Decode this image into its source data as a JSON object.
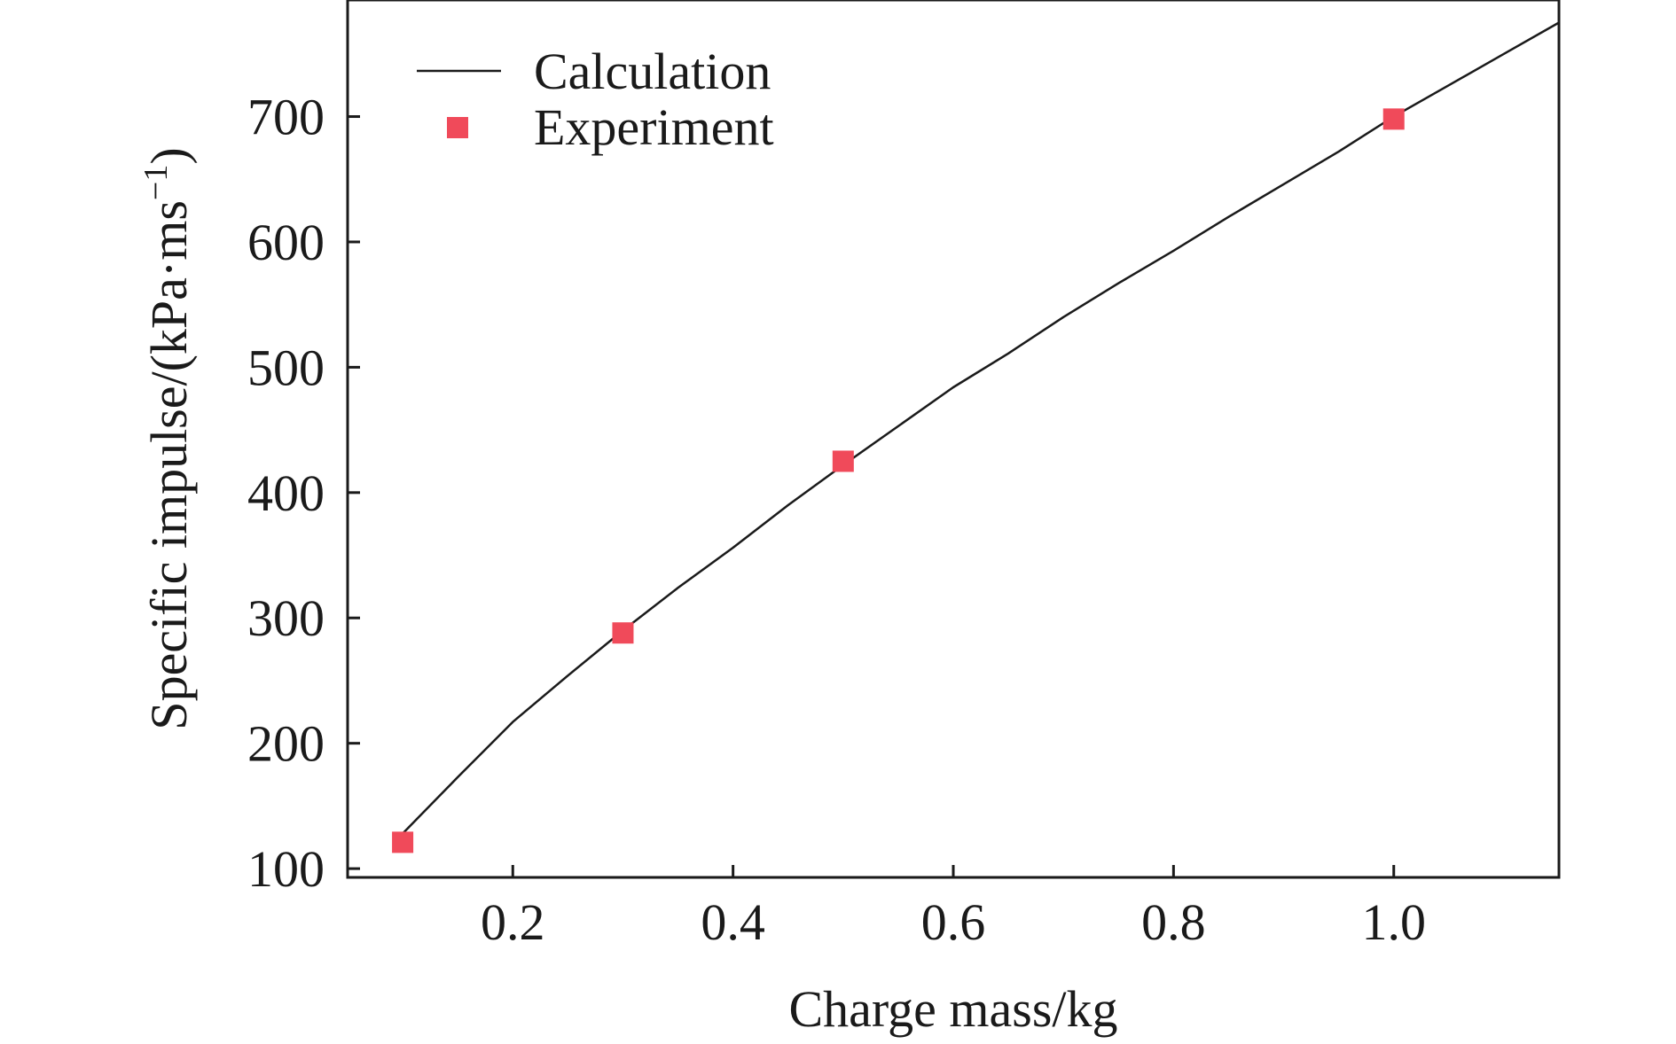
{
  "chart_data": {
    "type": "line",
    "xlabel": "Charge mass/kg",
    "ylabel": {
      "main": "Specific impulse/(kPa·ms",
      "sup": "−1",
      "close": ")"
    },
    "xlim": [
      0.05,
      1.15
    ],
    "ylim": [
      93,
      793
    ],
    "xticks": [
      0.2,
      0.4,
      0.6,
      0.8,
      1.0
    ],
    "xtick_labels": [
      "0.2",
      "0.4",
      "0.6",
      "0.8",
      "1.0"
    ],
    "yticks": [
      100,
      200,
      300,
      400,
      500,
      600,
      700
    ],
    "ytick_labels": [
      "100",
      "200",
      "300",
      "400",
      "500",
      "600",
      "700"
    ],
    "grid": false,
    "legend_position": "top-left",
    "series": [
      {
        "name": "Calculation",
        "style": "line",
        "color": "#1a1a1a",
        "x": [
          0.1,
          0.15,
          0.2,
          0.25,
          0.3,
          0.35,
          0.4,
          0.45,
          0.5,
          0.55,
          0.6,
          0.65,
          0.7,
          0.75,
          0.8,
          0.85,
          0.9,
          0.95,
          1.0,
          1.05,
          1.1,
          1.15
        ],
        "y": [
          128,
          173,
          217,
          254,
          290,
          324,
          356,
          390,
          422,
          453,
          484,
          511,
          540,
          567,
          593,
          620,
          646,
          672,
          700,
          725,
          750,
          775
        ]
      },
      {
        "name": "Experiment",
        "style": "marker",
        "marker": "square",
        "color": "#f04a5a",
        "x": [
          0.1,
          0.3,
          0.5,
          1.0
        ],
        "y": [
          121,
          288,
          425,
          698
        ]
      }
    ]
  }
}
